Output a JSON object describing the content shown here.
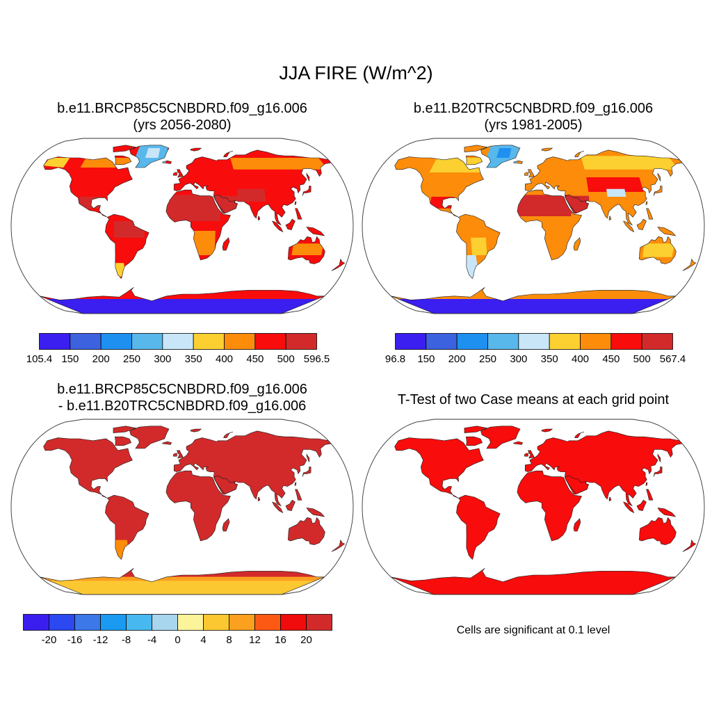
{
  "title": "JJA FIRE (W/m^2)",
  "panels": [
    {
      "id": "p1",
      "title1": "b.e11.BRCP85C5CNBDRD.f09_g16.006",
      "title2": "(yrs 2056-2080)",
      "palette": "abs_hot"
    },
    {
      "id": "p2",
      "title1": "b.e11.B20TRC5CNBDRD.f09_g16.006",
      "title2": "(yrs 1981-2005)",
      "palette": "abs_mild"
    },
    {
      "id": "p3",
      "title1": "b.e11.BRCP85C5CNBDRD.f09_g16.006",
      "title2": "- b.e11.B20TRC5CNBDRD.f09_g16.006",
      "palette": "diff"
    },
    {
      "id": "p4",
      "title1": "T-Test of two Case means at each grid point",
      "title2": "",
      "palette": "sig"
    }
  ],
  "colorbars": [
    {
      "id": "cb1",
      "colors": [
        "#3b1ef0",
        "#3d62e0",
        "#1e90f0",
        "#58b8ec",
        "#c8e6f8",
        "#fcd030",
        "#fc8c0a",
        "#f80c0c",
        "#d22a2a"
      ],
      "labels": [
        "105.4",
        "150",
        "200",
        "250",
        "300",
        "350",
        "400",
        "450",
        "500",
        "596.5"
      ]
    },
    {
      "id": "cb2",
      "colors": [
        "#3b1ef0",
        "#3d62e0",
        "#1e90f0",
        "#58b8ec",
        "#c8e6f8",
        "#fcd030",
        "#fc8c0a",
        "#f80c0c",
        "#d22a2a"
      ],
      "labels": [
        "96.8",
        "150",
        "200",
        "250",
        "300",
        "350",
        "400",
        "450",
        "500",
        "567.4"
      ]
    },
    {
      "id": "cb3",
      "colors": [
        "#3a1ef0",
        "#2c48f0",
        "#3c78e8",
        "#1a9af0",
        "#48b8f0",
        "#a8d6ee",
        "#fcf49a",
        "#fcc832",
        "#fca020",
        "#fc5a14",
        "#f00c0c",
        "#d22a2a"
      ],
      "labels": [
        "-20",
        "-16",
        "-12",
        "-8",
        "-4",
        "0",
        "4",
        "8",
        "12",
        "16",
        "20"
      ]
    }
  ],
  "note": "Cells are significant at 0.1 level"
}
